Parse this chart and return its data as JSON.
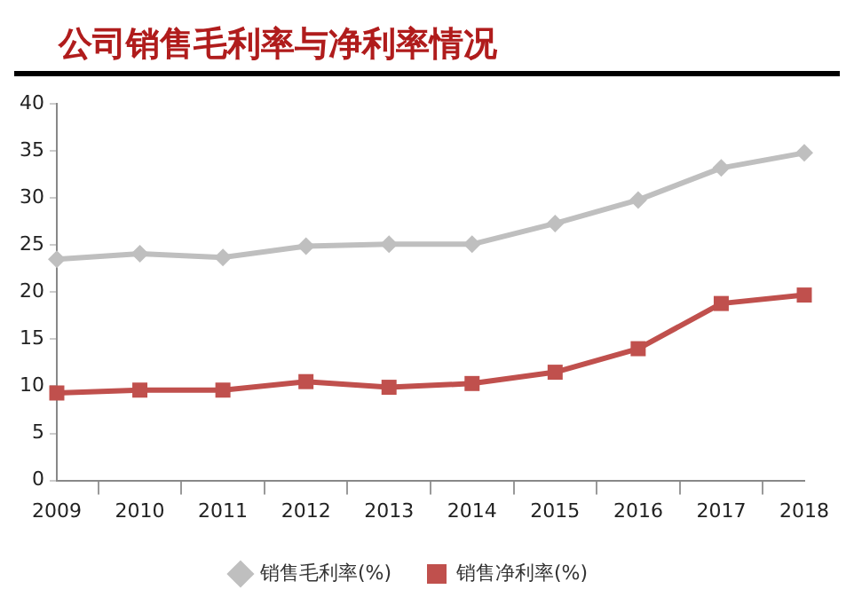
{
  "chart_data": {
    "type": "line",
    "title": "公司销售毛利率与净利率情况",
    "categories": [
      "2009",
      "2010",
      "2011",
      "2012",
      "2013",
      "2014",
      "2015",
      "2016",
      "2017",
      "2018"
    ],
    "series": [
      {
        "name": "销售毛利率(%)",
        "color": "#bfbfbf",
        "marker": "diamond",
        "values": [
          23.5,
          24.1,
          23.7,
          24.9,
          25.1,
          25.1,
          27.3,
          29.8,
          33.2,
          34.8
        ]
      },
      {
        "name": "销售净利率(%)",
        "color": "#c0504d",
        "marker": "square",
        "values": [
          9.3,
          9.6,
          9.6,
          10.5,
          9.9,
          10.3,
          11.5,
          14.0,
          18.8,
          19.7
        ]
      }
    ],
    "ylim": [
      0,
      40
    ],
    "yticks": [
      0,
      5,
      10,
      15,
      20,
      25,
      30,
      35,
      40
    ],
    "grid": false,
    "legend": "bottom",
    "line_style": "solid"
  }
}
